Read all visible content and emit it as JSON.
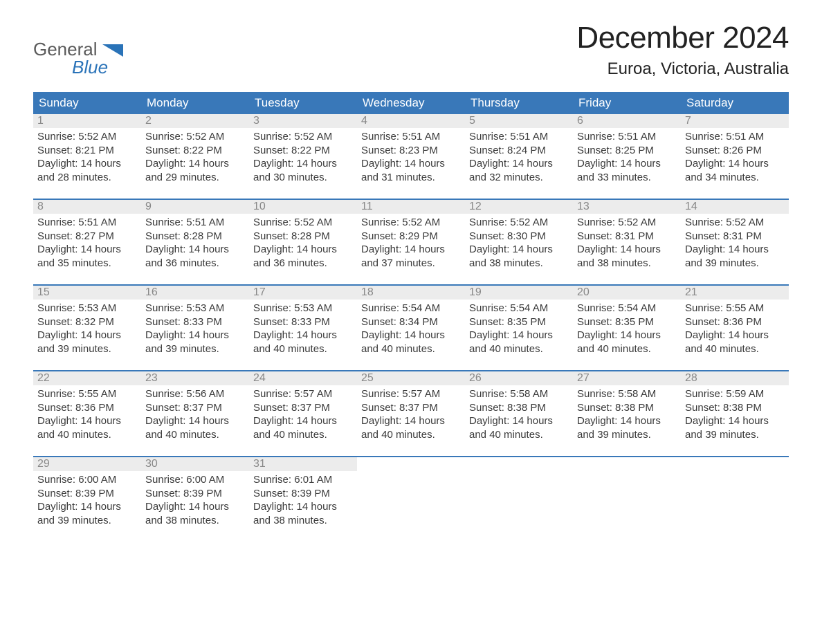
{
  "logo": {
    "text_gray": "General",
    "text_blue": "Blue",
    "gray_color": "#5a5a5a",
    "blue_color": "#2a73b8"
  },
  "title": "December 2024",
  "location": "Euroa, Victoria, Australia",
  "header_bar_color": "#3978b9",
  "header_text_color": "#ffffff",
  "week_divider_color": "#3978b9",
  "daynum_bg": "#ececec",
  "daynum_color": "#888888",
  "body_text_color": "#3a3a3a",
  "weekdays": [
    "Sunday",
    "Monday",
    "Tuesday",
    "Wednesday",
    "Thursday",
    "Friday",
    "Saturday"
  ],
  "weeks": [
    [
      {
        "num": "1",
        "sunrise": "Sunrise: 5:52 AM",
        "sunset": "Sunset: 8:21 PM",
        "day1": "Daylight: 14 hours",
        "day2": "and 28 minutes."
      },
      {
        "num": "2",
        "sunrise": "Sunrise: 5:52 AM",
        "sunset": "Sunset: 8:22 PM",
        "day1": "Daylight: 14 hours",
        "day2": "and 29 minutes."
      },
      {
        "num": "3",
        "sunrise": "Sunrise: 5:52 AM",
        "sunset": "Sunset: 8:22 PM",
        "day1": "Daylight: 14 hours",
        "day2": "and 30 minutes."
      },
      {
        "num": "4",
        "sunrise": "Sunrise: 5:51 AM",
        "sunset": "Sunset: 8:23 PM",
        "day1": "Daylight: 14 hours",
        "day2": "and 31 minutes."
      },
      {
        "num": "5",
        "sunrise": "Sunrise: 5:51 AM",
        "sunset": "Sunset: 8:24 PM",
        "day1": "Daylight: 14 hours",
        "day2": "and 32 minutes."
      },
      {
        "num": "6",
        "sunrise": "Sunrise: 5:51 AM",
        "sunset": "Sunset: 8:25 PM",
        "day1": "Daylight: 14 hours",
        "day2": "and 33 minutes."
      },
      {
        "num": "7",
        "sunrise": "Sunrise: 5:51 AM",
        "sunset": "Sunset: 8:26 PM",
        "day1": "Daylight: 14 hours",
        "day2": "and 34 minutes."
      }
    ],
    [
      {
        "num": "8",
        "sunrise": "Sunrise: 5:51 AM",
        "sunset": "Sunset: 8:27 PM",
        "day1": "Daylight: 14 hours",
        "day2": "and 35 minutes."
      },
      {
        "num": "9",
        "sunrise": "Sunrise: 5:51 AM",
        "sunset": "Sunset: 8:28 PM",
        "day1": "Daylight: 14 hours",
        "day2": "and 36 minutes."
      },
      {
        "num": "10",
        "sunrise": "Sunrise: 5:52 AM",
        "sunset": "Sunset: 8:28 PM",
        "day1": "Daylight: 14 hours",
        "day2": "and 36 minutes."
      },
      {
        "num": "11",
        "sunrise": "Sunrise: 5:52 AM",
        "sunset": "Sunset: 8:29 PM",
        "day1": "Daylight: 14 hours",
        "day2": "and 37 minutes."
      },
      {
        "num": "12",
        "sunrise": "Sunrise: 5:52 AM",
        "sunset": "Sunset: 8:30 PM",
        "day1": "Daylight: 14 hours",
        "day2": "and 38 minutes."
      },
      {
        "num": "13",
        "sunrise": "Sunrise: 5:52 AM",
        "sunset": "Sunset: 8:31 PM",
        "day1": "Daylight: 14 hours",
        "day2": "and 38 minutes."
      },
      {
        "num": "14",
        "sunrise": "Sunrise: 5:52 AM",
        "sunset": "Sunset: 8:31 PM",
        "day1": "Daylight: 14 hours",
        "day2": "and 39 minutes."
      }
    ],
    [
      {
        "num": "15",
        "sunrise": "Sunrise: 5:53 AM",
        "sunset": "Sunset: 8:32 PM",
        "day1": "Daylight: 14 hours",
        "day2": "and 39 minutes."
      },
      {
        "num": "16",
        "sunrise": "Sunrise: 5:53 AM",
        "sunset": "Sunset: 8:33 PM",
        "day1": "Daylight: 14 hours",
        "day2": "and 39 minutes."
      },
      {
        "num": "17",
        "sunrise": "Sunrise: 5:53 AM",
        "sunset": "Sunset: 8:33 PM",
        "day1": "Daylight: 14 hours",
        "day2": "and 40 minutes."
      },
      {
        "num": "18",
        "sunrise": "Sunrise: 5:54 AM",
        "sunset": "Sunset: 8:34 PM",
        "day1": "Daylight: 14 hours",
        "day2": "and 40 minutes."
      },
      {
        "num": "19",
        "sunrise": "Sunrise: 5:54 AM",
        "sunset": "Sunset: 8:35 PM",
        "day1": "Daylight: 14 hours",
        "day2": "and 40 minutes."
      },
      {
        "num": "20",
        "sunrise": "Sunrise: 5:54 AM",
        "sunset": "Sunset: 8:35 PM",
        "day1": "Daylight: 14 hours",
        "day2": "and 40 minutes."
      },
      {
        "num": "21",
        "sunrise": "Sunrise: 5:55 AM",
        "sunset": "Sunset: 8:36 PM",
        "day1": "Daylight: 14 hours",
        "day2": "and 40 minutes."
      }
    ],
    [
      {
        "num": "22",
        "sunrise": "Sunrise: 5:55 AM",
        "sunset": "Sunset: 8:36 PM",
        "day1": "Daylight: 14 hours",
        "day2": "and 40 minutes."
      },
      {
        "num": "23",
        "sunrise": "Sunrise: 5:56 AM",
        "sunset": "Sunset: 8:37 PM",
        "day1": "Daylight: 14 hours",
        "day2": "and 40 minutes."
      },
      {
        "num": "24",
        "sunrise": "Sunrise: 5:57 AM",
        "sunset": "Sunset: 8:37 PM",
        "day1": "Daylight: 14 hours",
        "day2": "and 40 minutes."
      },
      {
        "num": "25",
        "sunrise": "Sunrise: 5:57 AM",
        "sunset": "Sunset: 8:37 PM",
        "day1": "Daylight: 14 hours",
        "day2": "and 40 minutes."
      },
      {
        "num": "26",
        "sunrise": "Sunrise: 5:58 AM",
        "sunset": "Sunset: 8:38 PM",
        "day1": "Daylight: 14 hours",
        "day2": "and 40 minutes."
      },
      {
        "num": "27",
        "sunrise": "Sunrise: 5:58 AM",
        "sunset": "Sunset: 8:38 PM",
        "day1": "Daylight: 14 hours",
        "day2": "and 39 minutes."
      },
      {
        "num": "28",
        "sunrise": "Sunrise: 5:59 AM",
        "sunset": "Sunset: 8:38 PM",
        "day1": "Daylight: 14 hours",
        "day2": "and 39 minutes."
      }
    ],
    [
      {
        "num": "29",
        "sunrise": "Sunrise: 6:00 AM",
        "sunset": "Sunset: 8:39 PM",
        "day1": "Daylight: 14 hours",
        "day2": "and 39 minutes."
      },
      {
        "num": "30",
        "sunrise": "Sunrise: 6:00 AM",
        "sunset": "Sunset: 8:39 PM",
        "day1": "Daylight: 14 hours",
        "day2": "and 38 minutes."
      },
      {
        "num": "31",
        "sunrise": "Sunrise: 6:01 AM",
        "sunset": "Sunset: 8:39 PM",
        "day1": "Daylight: 14 hours",
        "day2": "and 38 minutes."
      },
      {
        "empty": true
      },
      {
        "empty": true
      },
      {
        "empty": true
      },
      {
        "empty": true
      }
    ]
  ]
}
